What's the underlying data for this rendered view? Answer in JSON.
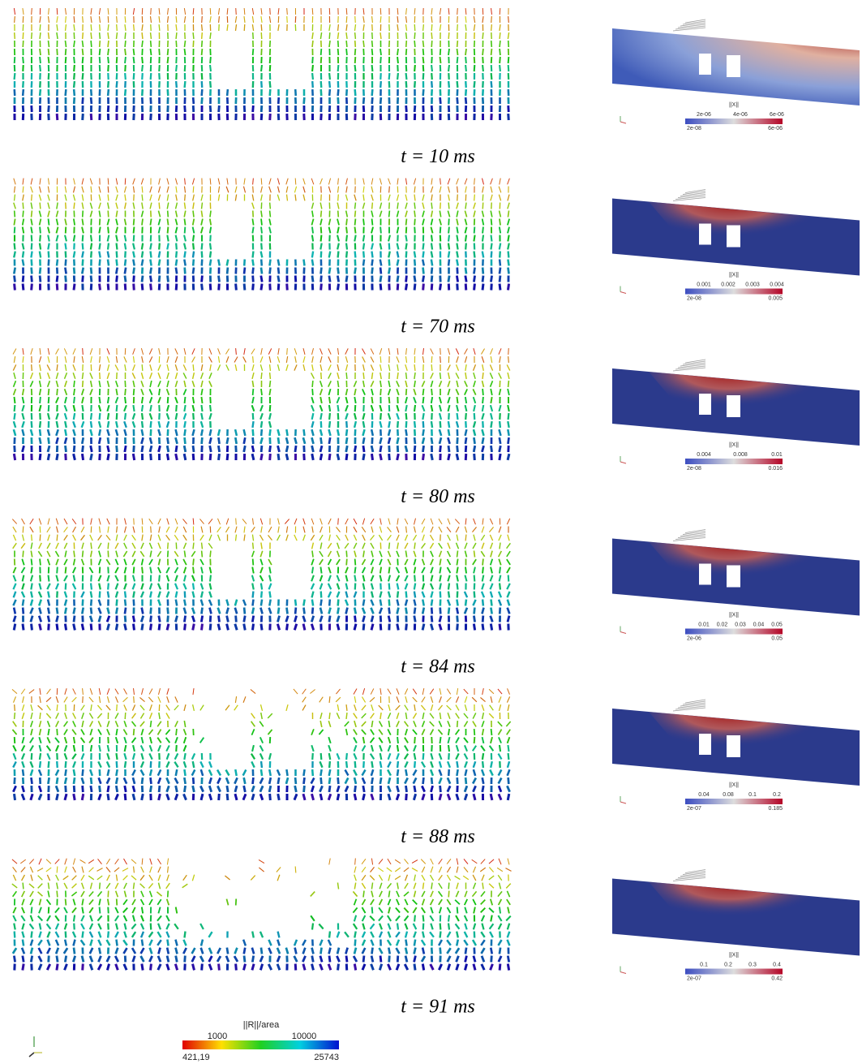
{
  "panels": [
    {
      "time": "t = 10 ms",
      "bar_title": "||X||",
      "bar_ticks": [
        "2e-06",
        "4e-06",
        "6e-06"
      ],
      "bar_min": "2e-08",
      "bar_max": "6e-06"
    },
    {
      "time": "t = 70 ms",
      "bar_title": "||X||",
      "bar_ticks": [
        "0.001",
        "0.002",
        "0.003",
        "0.004"
      ],
      "bar_min": "2e-08",
      "bar_max": "0.005"
    },
    {
      "time": "t = 80 ms",
      "bar_title": "||X||",
      "bar_ticks": [
        "0.004",
        "0.008",
        "0.01"
      ],
      "bar_min": "2e-08",
      "bar_max": "0.016"
    },
    {
      "time": "t = 84 ms",
      "bar_title": "||X||",
      "bar_ticks": [
        "0.01",
        "0.02",
        "0.03",
        "0.04",
        "0.05"
      ],
      "bar_min": "2e-06",
      "bar_max": "0.05"
    },
    {
      "time": "t = 88 ms",
      "bar_title": "||X||",
      "bar_ticks": [
        "0.04",
        "0.08",
        "0.1",
        "0.2"
      ],
      "bar_min": "2e-07",
      "bar_max": "0.185"
    },
    {
      "time": "t = 91 ms",
      "bar_title": "||X||",
      "bar_ticks": [
        "0.1",
        "0.2",
        "0.3",
        "0.4"
      ],
      "bar_min": "2e-07",
      "bar_max": "0.42"
    }
  ],
  "legend": {
    "title": "||R||/area",
    "ticks": [
      "1000",
      "10000"
    ],
    "min": "421,19",
    "max": "25743"
  }
}
